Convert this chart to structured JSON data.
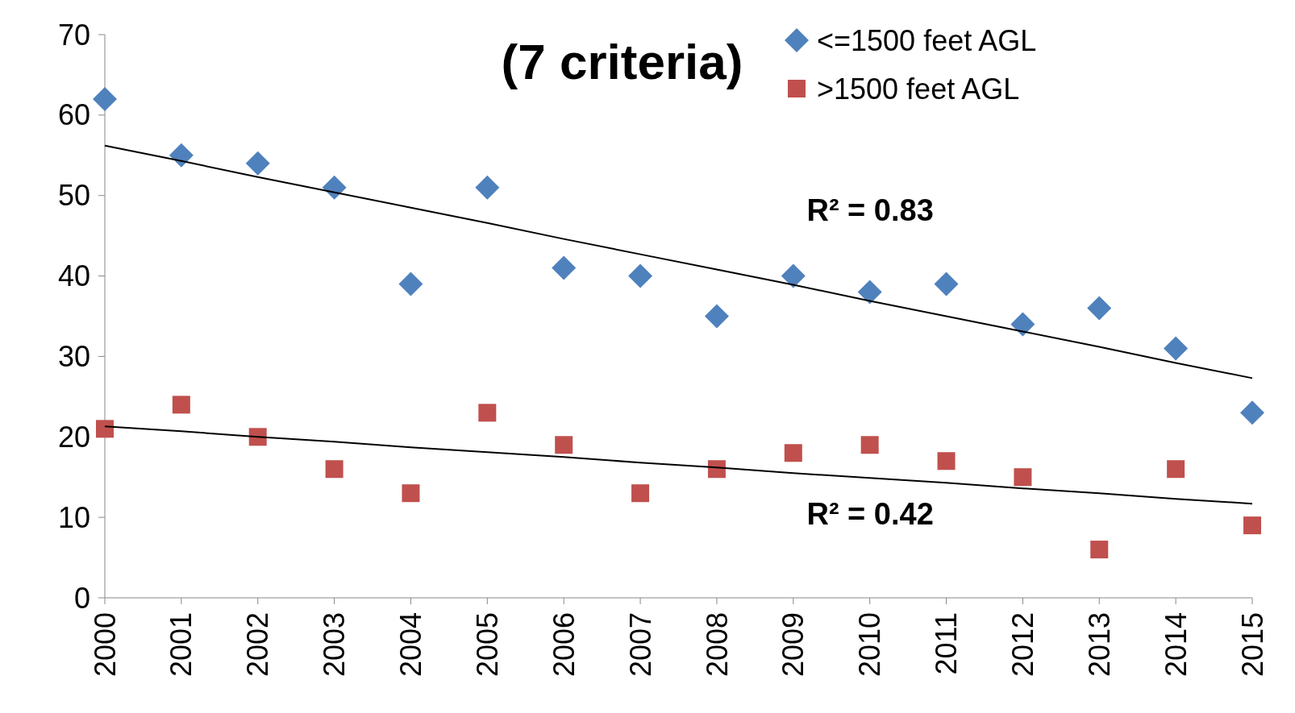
{
  "chart_data": {
    "type": "scatter",
    "title": "(7 criteria)",
    "x": [
      2000,
      2001,
      2002,
      2003,
      2004,
      2005,
      2006,
      2007,
      2008,
      2009,
      2010,
      2011,
      2012,
      2013,
      2014,
      2015
    ],
    "series": [
      {
        "name": "<=1500 feet AGL",
        "color": "#4f81bd",
        "marker": "diamond",
        "values": [
          62,
          55,
          54,
          51,
          39,
          51,
          41,
          40,
          35,
          40,
          38,
          39,
          34,
          36,
          31,
          23
        ]
      },
      {
        "name": ">1500 feet AGL",
        "color": "#c0504d",
        "marker": "square",
        "values": [
          21,
          24,
          20,
          16,
          13,
          23,
          19,
          13,
          16,
          18,
          19,
          17,
          15,
          6,
          16,
          9
        ]
      },
      {
        "type": "line",
        "color": "#000000",
        "values": [
          56.2,
          54.3,
          52.3,
          50.4,
          48.5,
          46.6,
          44.6,
          42.7,
          40.8,
          38.9,
          36.9,
          35.0,
          33.1,
          31.2,
          29.2,
          27.3
        ]
      },
      {
        "type": "line",
        "color": "#000000",
        "values": [
          21.3,
          20.7,
          20.0,
          19.4,
          18.7,
          18.1,
          17.5,
          16.8,
          16.2,
          15.5,
          14.9,
          14.3,
          13.6,
          13.0,
          12.3,
          11.7
        ]
      }
    ],
    "xlim": [
      2000,
      2015
    ],
    "xticks": [
      2000,
      2001,
      2002,
      2003,
      2004,
      2005,
      2006,
      2007,
      2008,
      2009,
      2010,
      2011,
      2012,
      2013,
      2014,
      2015
    ],
    "ylim": [
      0,
      70
    ],
    "yticks": [
      0,
      10,
      20,
      30,
      40,
      50,
      60,
      70
    ],
    "annotations": [
      "R² = 0.83",
      "R² = 0.42"
    ],
    "legend": "top right",
    "grid": false
  }
}
